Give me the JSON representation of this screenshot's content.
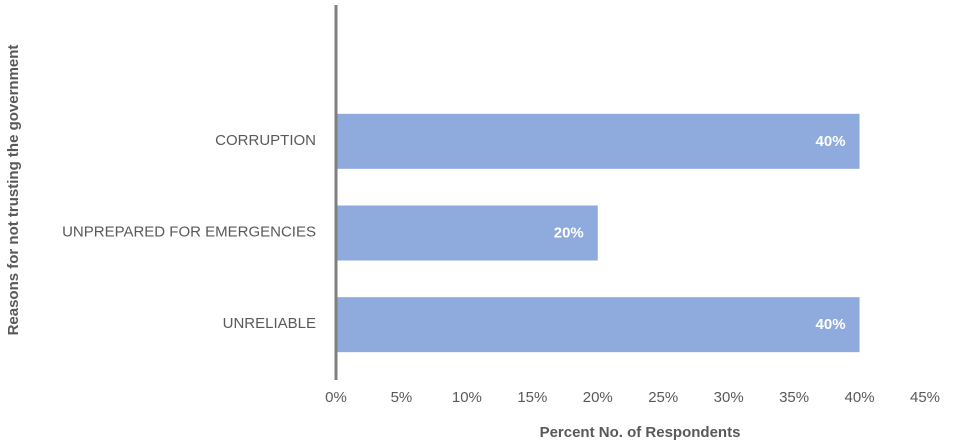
{
  "chart_data": {
    "type": "bar",
    "orientation": "horizontal",
    "x_label": "Percent No. of Respondents",
    "y_label": "Reasons for not trusting the government",
    "categories": [
      "CORRUPTION",
      "UNPREPARED FOR EMERGENCIES",
      "UNRELIABLE"
    ],
    "values": [
      40,
      20,
      40
    ],
    "value_labels": [
      "40%",
      "20%",
      "40%"
    ],
    "color": "#8faadc",
    "xlim": [
      0,
      45
    ],
    "xticks": [
      {
        "value": 0,
        "label": "0%"
      },
      {
        "value": 5,
        "label": "5%"
      },
      {
        "value": 10,
        "label": "10%"
      },
      {
        "value": 15,
        "label": "15%"
      },
      {
        "value": 20,
        "label": "20%"
      },
      {
        "value": 25,
        "label": "25%"
      },
      {
        "value": 30,
        "label": "30%"
      },
      {
        "value": 35,
        "label": "35%"
      },
      {
        "value": 40,
        "label": "40%"
      },
      {
        "value": 45,
        "label": "45%"
      }
    ],
    "grid": false
  }
}
